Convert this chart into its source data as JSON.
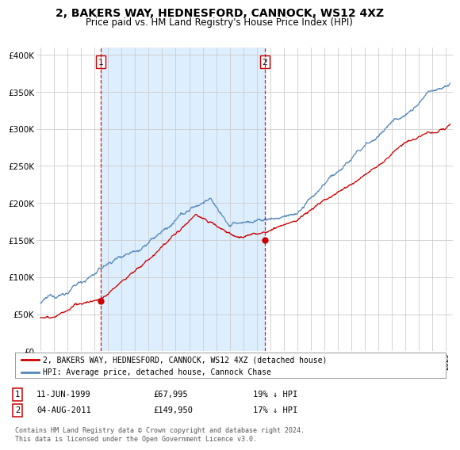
{
  "title": "2, BAKERS WAY, HEDNESFORD, CANNOCK, WS12 4XZ",
  "subtitle": "Price paid vs. HM Land Registry's House Price Index (HPI)",
  "legend_line1": "2, BAKERS WAY, HEDNESFORD, CANNOCK, WS12 4XZ (detached house)",
  "legend_line2": "HPI: Average price, detached house, Cannock Chase",
  "footnote": "Contains HM Land Registry data © Crown copyright and database right 2024.\nThis data is licensed under the Open Government Licence v3.0.",
  "marker1_date": "11-JUN-1999",
  "marker1_price": "£67,995",
  "marker1_hpi": "19% ↓ HPI",
  "marker1_year": 1999.44,
  "marker1_value": 67995,
  "marker2_date": "04-AUG-2011",
  "marker2_price": "£149,950",
  "marker2_hpi": "17% ↓ HPI",
  "marker2_year": 2011.59,
  "marker2_value": 149950,
  "red_color": "#cc0000",
  "blue_color": "#5588bb",
  "shade_color": "#ddeeff",
  "background_color": "#ffffff",
  "grid_color": "#cccccc",
  "ylim": [
    0,
    410000
  ],
  "yticks": [
    0,
    50000,
    100000,
    150000,
    200000,
    250000,
    300000,
    350000,
    400000
  ],
  "xlim_start": 1994.7,
  "xlim_end": 2025.5
}
